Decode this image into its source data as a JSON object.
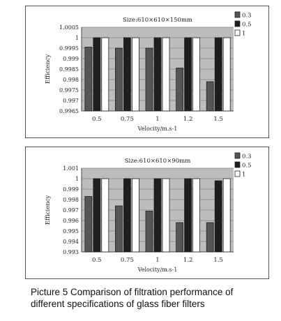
{
  "chart_data": [
    {
      "type": "bar",
      "title": "Size:610×610×150mm",
      "xlabel": "Velocity/m.s-1",
      "ylabel": "Efficiency",
      "categories": [
        "0.5",
        "0.75",
        "1",
        "1.2",
        "1.5"
      ],
      "y_ticks": [
        "1.0005",
        "1",
        "0.9995",
        "0.999",
        "0.9985",
        "0.998",
        "0.9975",
        "0.997",
        "0.9965"
      ],
      "ylim": [
        0.9965,
        1.0005
      ],
      "series": [
        {
          "name": "0.3",
          "color": "#555555",
          "values": [
            0.99955,
            0.9995,
            0.9995,
            0.99855,
            0.9979
          ]
        },
        {
          "name": "0.5",
          "color": "#1e1e1e",
          "values": [
            1.0,
            1.0,
            1.0,
            1.0,
            1.0
          ]
        },
        {
          "name": "1",
          "color": "#ffffff",
          "values": [
            1.0,
            1.0,
            1.0,
            1.0,
            1.0
          ]
        }
      ],
      "legend": "right",
      "grid": true
    },
    {
      "type": "bar",
      "title": "Size:610×610×90mm",
      "xlabel": "Velocity/m.s-1",
      "ylabel": "Efficiency",
      "categories": [
        "0.5",
        "0.75",
        "1",
        "1.2",
        "1.5"
      ],
      "y_ticks": [
        "1.001",
        "1",
        "0.999",
        "0.998",
        "0.997",
        "0.996",
        "0.995",
        "0.994",
        "0.993"
      ],
      "ylim": [
        0.993,
        1.001
      ],
      "series": [
        {
          "name": "0.3",
          "color": "#555555",
          "values": [
            0.9983,
            0.9974,
            0.9969,
            0.9958,
            0.9958
          ]
        },
        {
          "name": "0.5",
          "color": "#1e1e1e",
          "values": [
            1.0,
            1.0,
            1.0,
            1.0,
            0.9998
          ]
        },
        {
          "name": "1",
          "color": "#ffffff",
          "values": [
            1.0,
            1.0,
            1.0,
            1.0,
            1.0
          ]
        }
      ],
      "legend": "right",
      "grid": true
    }
  ],
  "caption": {
    "line1": "Picture 5 Comparison of filtration performance of",
    "line2": "different specifications of glass fiber filters"
  }
}
